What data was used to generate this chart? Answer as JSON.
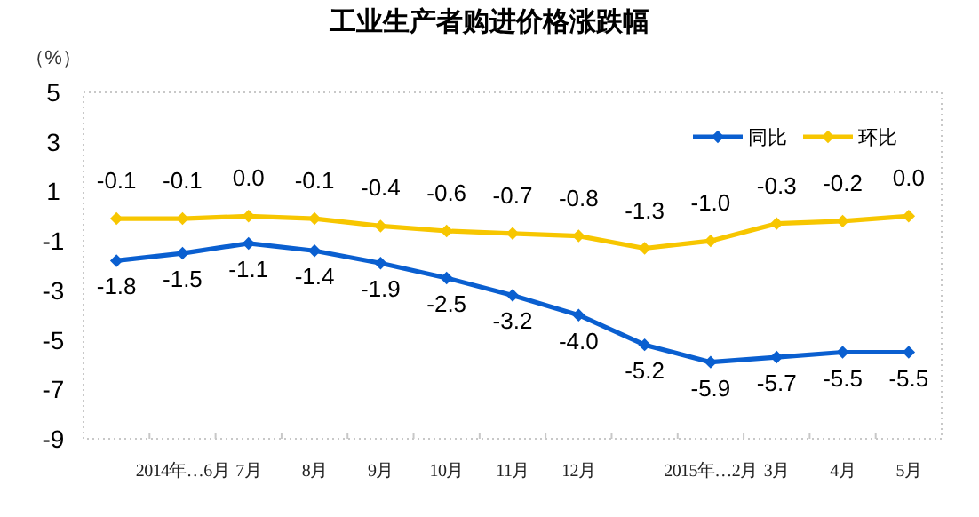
{
  "chart_data": {
    "type": "line",
    "title": "工业生产者购进价格涨跌幅",
    "ylabel": "（%）",
    "categories": [
      null,
      "2014年…6月",
      "7月",
      "8月",
      "9月",
      "10月",
      "11月",
      "12月",
      null,
      "2015年…2月",
      "3月",
      "4月",
      "5月"
    ],
    "series": [
      {
        "name": "同比",
        "color": "#0a5fd0",
        "values": [
          -1.8,
          -1.5,
          -1.1,
          -1.4,
          -1.9,
          -2.5,
          -3.2,
          -4.0,
          -5.2,
          -5.9,
          -5.7,
          -5.5,
          -5.5
        ],
        "value_labels": [
          "-1.8",
          "-1.5",
          "-1.1",
          "-1.4",
          "-1.9",
          "-2.5",
          "-3.2",
          "-4.0",
          "-5.2",
          "-5.9",
          "-5.7",
          "-5.5",
          "-5.5"
        ]
      },
      {
        "name": "环比",
        "color": "#f7c600",
        "values": [
          -0.1,
          -0.1,
          0.0,
          -0.1,
          -0.4,
          -0.6,
          -0.7,
          -0.8,
          -1.3,
          -1.0,
          -0.3,
          -0.2,
          0.0
        ],
        "value_labels": [
          "-0.1",
          "-0.1",
          "0.0",
          "-0.1",
          "-0.4",
          "-0.6",
          "-0.7",
          "-0.8",
          "-1.3",
          "-1.0",
          "-0.3",
          "-0.2",
          "0.0"
        ]
      }
    ],
    "ylim": [
      -9,
      5
    ],
    "yticks": [
      -9,
      -7,
      -5,
      -3,
      -1,
      1,
      3,
      5
    ],
    "legend": "top right",
    "marker": "diamond",
    "grid": false
  }
}
